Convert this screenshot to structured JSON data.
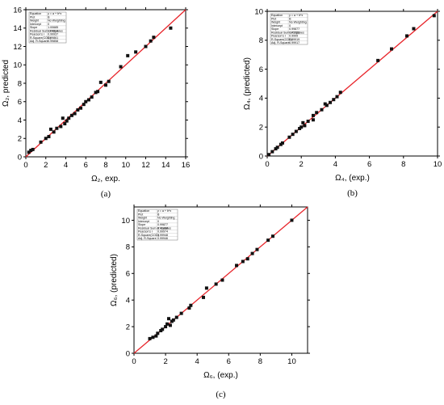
{
  "chart_data": [
    {
      "type": "scatter",
      "panel_label": "(a)",
      "xlabel": "Ω₂, exp.",
      "ylabel": "Ω₂, predicted",
      "xlim": [
        0,
        16
      ],
      "ylim": [
        0,
        16
      ],
      "xticks": [
        0,
        2,
        4,
        6,
        8,
        10,
        12,
        14,
        16
      ],
      "yticks": [
        0,
        2,
        4,
        6,
        8,
        10,
        12,
        14,
        16
      ],
      "fit_line": [
        [
          0,
          0
        ],
        [
          16,
          16
        ]
      ],
      "point_color": "#111111",
      "line_color": "#e8242a",
      "points": [
        [
          0.3,
          0.5
        ],
        [
          0.5,
          0.7
        ],
        [
          0.7,
          0.8
        ],
        [
          1.5,
          1.6
        ],
        [
          2,
          2
        ],
        [
          2.3,
          2.2
        ],
        [
          2.5,
          3
        ],
        [
          2.8,
          2.7
        ],
        [
          3.1,
          3.1
        ],
        [
          3.5,
          3.3
        ],
        [
          3.7,
          4.2
        ],
        [
          3.9,
          3.6
        ],
        [
          4.1,
          3.9
        ],
        [
          4.3,
          4.2
        ],
        [
          4.6,
          4.5
        ],
        [
          4.9,
          4.7
        ],
        [
          5.2,
          5.1
        ],
        [
          5.5,
          5.3
        ],
        [
          5.8,
          5.7
        ],
        [
          6,
          6
        ],
        [
          6.3,
          6.2
        ],
        [
          6.6,
          6.5
        ],
        [
          7,
          7
        ],
        [
          7.2,
          7.1
        ],
        [
          7.5,
          8.1
        ],
        [
          8,
          7.8
        ],
        [
          8.3,
          8.2
        ],
        [
          9.5,
          9.8
        ],
        [
          10.2,
          11
        ],
        [
          11,
          11.4
        ],
        [
          12,
          12
        ],
        [
          12.5,
          12.6
        ],
        [
          12.8,
          13
        ],
        [
          14.5,
          14
        ]
      ],
      "stats": [
        [
          "Equation",
          "y = a + b*x"
        ],
        [
          "Plot",
          "B"
        ],
        [
          "Weight",
          "No Weighting"
        ],
        [
          "Intercept",
          "0"
        ],
        [
          "Slope",
          "1.00685"
        ],
        [
          "Residual Sum of Squares",
          "2.64314"
        ],
        [
          "Pearson's r",
          "0.99937"
        ],
        [
          "R-Square(COD)",
          "0.99861"
        ],
        [
          "Adj. R-Square",
          "0.99858"
        ]
      ]
    },
    {
      "type": "scatter",
      "panel_label": "(b)",
      "xlabel": "Ω₄, (exp.)",
      "ylabel": "Ω₄, (predicted)",
      "xlim": [
        0,
        10
      ],
      "ylim": [
        0,
        10
      ],
      "xticks": [
        0,
        2,
        4,
        6,
        8,
        10
      ],
      "yticks": [
        0,
        2,
        4,
        6,
        8,
        10
      ],
      "fit_line": [
        [
          0,
          0
        ],
        [
          10,
          10
        ]
      ],
      "point_color": "#111111",
      "line_color": "#e8242a",
      "points": [
        [
          0.1,
          0.1
        ],
        [
          0.3,
          0.3
        ],
        [
          0.5,
          0.5
        ],
        [
          0.6,
          0.6
        ],
        [
          0.8,
          0.8
        ],
        [
          0.9,
          0.9
        ],
        [
          1.3,
          1.3
        ],
        [
          1.5,
          1.5
        ],
        [
          1.7,
          1.7
        ],
        [
          1.9,
          1.9
        ],
        [
          2,
          2
        ],
        [
          2.1,
          2.3
        ],
        [
          2.2,
          2.1
        ],
        [
          2.4,
          2.4
        ],
        [
          2.7,
          2.5
        ],
        [
          2.7,
          2.8
        ],
        [
          2.9,
          3
        ],
        [
          3.2,
          3.2
        ],
        [
          3.4,
          3.6
        ],
        [
          3.5,
          3.5
        ],
        [
          3.7,
          3.7
        ],
        [
          3.9,
          3.9
        ],
        [
          4.1,
          4.1
        ],
        [
          4.3,
          4.4
        ],
        [
          6.5,
          6.6
        ],
        [
          7.3,
          7.4
        ],
        [
          8.2,
          8.3
        ],
        [
          8.6,
          8.8
        ],
        [
          9.8,
          9.7
        ]
      ],
      "stats": [
        [
          "Equation",
          "y = a + b*x"
        ],
        [
          "Plot",
          "B"
        ],
        [
          "Weight",
          "No Weighting"
        ],
        [
          "Intercept",
          "0"
        ],
        [
          "Slope",
          "0.99877"
        ],
        [
          "Residual Sum of Squares",
          "0.42722"
        ],
        [
          "Pearson's r",
          "0.9999"
        ],
        [
          "R-Square(COD)",
          "0.99919"
        ],
        [
          "Adj. R-Square",
          "0.99917"
        ]
      ]
    },
    {
      "type": "scatter",
      "panel_label": "(c)",
      "xlabel": "Ω₆, (exp.)",
      "ylabel": "Ω₆, (predicted)",
      "xlim": [
        0,
        11
      ],
      "ylim": [
        0,
        11
      ],
      "xticks": [
        0,
        2,
        4,
        6,
        8,
        10
      ],
      "yticks": [
        0,
        2,
        4,
        6,
        8,
        10
      ],
      "fit_line": [
        [
          0,
          0
        ],
        [
          11,
          11
        ]
      ],
      "point_color": "#111111",
      "line_color": "#e8242a",
      "points": [
        [
          1,
          1.1
        ],
        [
          1.2,
          1.2
        ],
        [
          1.4,
          1.3
        ],
        [
          1.5,
          1.5
        ],
        [
          1.7,
          1.7
        ],
        [
          1.8,
          1.8
        ],
        [
          2,
          2
        ],
        [
          2.1,
          2.2
        ],
        [
          2.2,
          2.6
        ],
        [
          2.3,
          2.1
        ],
        [
          2.4,
          2.4
        ],
        [
          2.5,
          2.5
        ],
        [
          2.7,
          2.7
        ],
        [
          3,
          3
        ],
        [
          3.5,
          3.4
        ],
        [
          3.6,
          3.6
        ],
        [
          4.4,
          4.2
        ],
        [
          4.6,
          4.9
        ],
        [
          5.2,
          5.2
        ],
        [
          5.6,
          5.5
        ],
        [
          6.5,
          6.6
        ],
        [
          6.9,
          6.9
        ],
        [
          7.2,
          7.1
        ],
        [
          7.5,
          7.5
        ],
        [
          7.8,
          7.8
        ],
        [
          8.5,
          8.5
        ],
        [
          8.8,
          8.8
        ],
        [
          10,
          10
        ]
      ],
      "stats": [
        [
          "Equation",
          "y = a + b*x"
        ],
        [
          "Plot",
          "B"
        ],
        [
          "Weight",
          "No Weighting"
        ],
        [
          "Intercept",
          "0"
        ],
        [
          "Slope",
          "0.99877"
        ],
        [
          "Residual Sum of Squares",
          "0.41468"
        ],
        [
          "Pearson's r",
          "0.99974"
        ],
        [
          "R-Square(COD)",
          "0.99948"
        ],
        [
          "Adj. R-Square",
          "0.99946"
        ]
      ]
    }
  ]
}
